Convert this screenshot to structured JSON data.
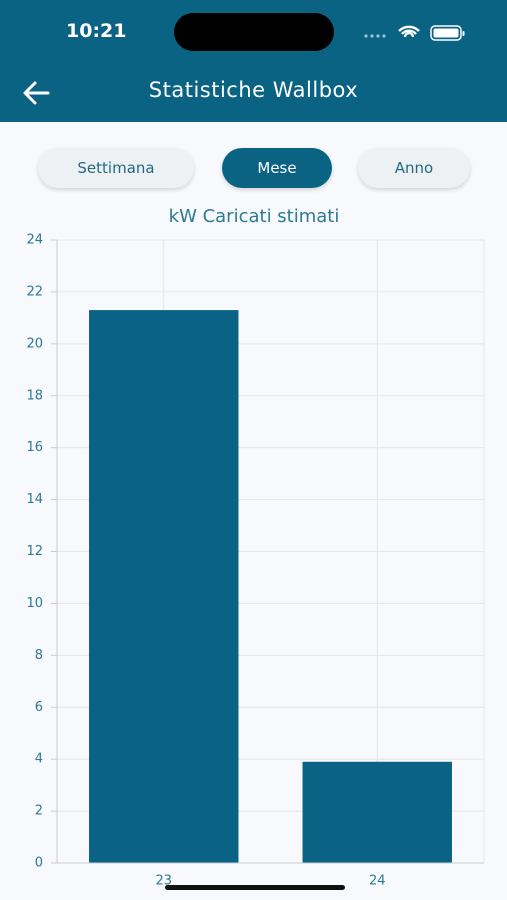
{
  "status_bar": {
    "time": "10:21"
  },
  "header": {
    "title": "Statistiche Wallbox"
  },
  "tabs": [
    "Settimana",
    "Mese",
    "Anno"
  ],
  "chart_data": {
    "type": "bar",
    "title": "kW Caricati stimati",
    "categories": [
      "23",
      "24"
    ],
    "values": [
      21.3,
      3.9
    ],
    "color": "#0a6384",
    "ylim": [
      0,
      24
    ],
    "yticks": [
      0,
      2,
      4,
      6,
      8,
      10,
      12,
      14,
      16,
      18,
      20,
      22,
      24
    ],
    "grid": true
  }
}
